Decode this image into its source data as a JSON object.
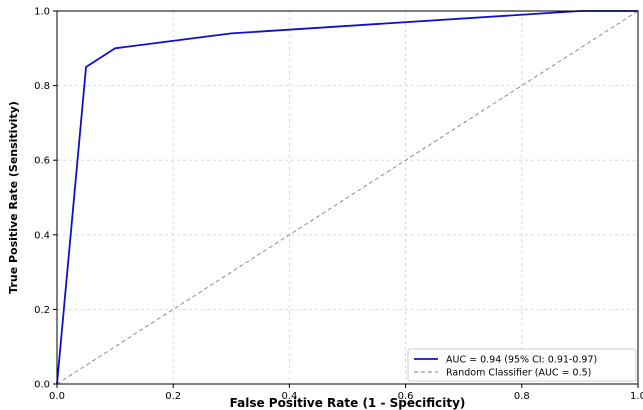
{
  "chart_data": {
    "type": "line",
    "title": "",
    "xlabel": "False Positive Rate (1 - Specificity)",
    "ylabel": "True Positive Rate (Sensitivity)",
    "xlim": [
      0.0,
      1.0
    ],
    "ylim": [
      0.0,
      1.0
    ],
    "xticks": [
      "0.0",
      "0.2",
      "0.4",
      "0.6",
      "0.8",
      "1.0"
    ],
    "yticks": [
      "0.0",
      "0.2",
      "0.4",
      "0.6",
      "0.8",
      "1.0"
    ],
    "grid": true,
    "legend_position": "bottom-right",
    "series": [
      {
        "name": "AUC = 0.94 (95% CI: 0.91-0.97)",
        "color": "#1010cc",
        "style": "solid",
        "x": [
          0.0,
          0.05,
          0.1,
          0.3,
          0.9,
          1.0
        ],
        "y": [
          0.0,
          0.85,
          0.9,
          0.94,
          1.0,
          1.0
        ]
      },
      {
        "name": "Random Classifier (AUC = 0.5)",
        "color": "#808080",
        "style": "dashed",
        "x": [
          0.0,
          1.0
        ],
        "y": [
          0.0,
          1.0
        ]
      }
    ]
  }
}
